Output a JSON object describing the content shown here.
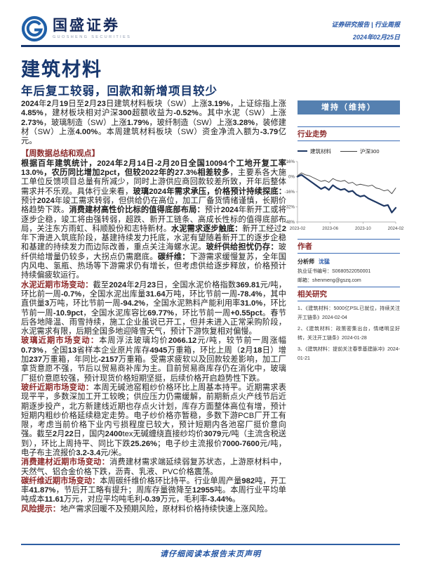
{
  "header": {
    "brand": "国盛证券",
    "brand_sub": "GUOSHENG SECURITIES",
    "report_type": "证券研究报告 | 行业周报",
    "date": "2024年02月25日"
  },
  "title": "建筑材料",
  "subtitle": "年后复工较弱，回款和新增项目较少",
  "paragraphs": [
    {
      "type": "text",
      "runs": [
        {
          "s": "n",
          "t": "2024年2月19日至2月23日建筑材料板块（SW）上涨3.19%，上证综指上涨4.85%，建材板块相对沪深300超额收益为-0.52%。其中水泥（SW）上涨2.73%，玻璃制造（SW）上涨1.79%，玻纤制造（SW）上涨3.28%，装修建材（SW）上涨4.00%。本周建筑材料板块（SW）资金净流入额为-3.79亿元。"
        }
      ]
    },
    {
      "type": "heading",
      "runs": [
        {
          "s": "r",
          "t": "【周数据总结和观点】"
        }
      ]
    },
    {
      "type": "text",
      "runs": [
        {
          "s": "b",
          "t": "根据百年建筑统计，2024年2月14日-2月20日全国10094个工地开复工率13.0%，农历同比增加2pct，但较2022年的27.3%相差较多"
        },
        {
          "s": "n",
          "t": "，主要系各大施工单位反馈项目总量有所减少，同时上游供应商回款较差所致，开年后整体需求并不乐观。具体行业来看，"
        },
        {
          "s": "b",
          "t": "玻璃2024年需求承压，价格预计持续探底："
        },
        {
          "s": "n",
          "t": "预计2024年竣工需求转弱，但供给仍在高位，加工厂备货情绪谨慎，长期价格趋势下跌。"
        },
        {
          "s": "b",
          "t": "消费建材高性价比标的值得底部布局："
        },
        {
          "s": "n",
          "t": "预计2024年新开工或将逐步企稳，竣工将由强转弱，超跌、新开工链条、高成长性标的值得底部布局，关注东方雨虹、科顺股份和志特新材。"
        },
        {
          "s": "b",
          "t": "水泥需求逐步触底："
        },
        {
          "s": "n",
          "t": "新开工经过2年下滑进入筑底阶段，基建持续发力托底，水泥有望随着新开工的逐步企稳和基建的持续发力而边际改善，重点关注海螺水泥。"
        },
        {
          "s": "b",
          "t": "玻纤供给担忧仍存："
        },
        {
          "s": "n",
          "t": "玻纤供给增量仍较多，大拐点仍需磨底。"
        },
        {
          "s": "b",
          "t": "碳纤维："
        },
        {
          "s": "n",
          "t": "下游需求缓慢复苏，全年国内风电、氢瓶、热场等下游需求仍有增长，但考虑供给逐步释放，价格预计持续偏疲软运行。"
        }
      ]
    },
    {
      "type": "text",
      "runs": [
        {
          "s": "r",
          "t": "水泥近期市场变动："
        },
        {
          "s": "n",
          "t": "截至2024年2月23日，全国水泥价格指数369.81元/吨，环比前一周-0.7%，全国水泥出库量31.64万吨，环比节前一周-78.4%，其中直供量3万吨，环比节前一周-94.2%，全国水泥熟料产能利用率31.0%，环比节前一周-10.9pct，全国水泥库容比69.77%，环比节前一周+0.55pct。春节后各地降温、雨雪持续，施工企业虽说已开工，但并未进入正常采购阶段，水泥需求有限，后期全国多地迎降雪天气，预计下游恢复相对偏慢。"
        }
      ]
    },
    {
      "type": "text",
      "runs": [
        {
          "s": "r",
          "t": "玻璃近期市场变动："
        },
        {
          "s": "n",
          "t": "本周浮法玻璃均价2066.12元/吨，较节前一周涨幅0.73%，全国13省样本企业原片库存4945万重箱，环比上周（2月18日）增加237万重箱，年同比-2157万重箱。受需求疲软以及回款较差影响，加工厂拿货意愿不强，节后以贸易商补库为主。目前贸易商库存仍在消化中，玻璃厂挺价意愿较强，预计现货价格短期坚挺，后续价格开启趋势性下跌。"
        }
      ]
    },
    {
      "type": "text",
      "runs": [
        {
          "s": "r",
          "t": "玻纤近期市场变动："
        },
        {
          "s": "n",
          "t": "本周无碱池窑粗纱价格环比上周基本持平。近期需求表现平平，多数深加工开工较晚；供应压力仍需缓解，前期新点火产线节后近期逐步投产，北方新建线近期也存点火计划，库存方面整体高位有增，预计短期内粗纱价格延续稳定走势。电子纱价格亦暂稳，多数下游PCB厂开工有限，考虑当前价格下业内亏损程度已较大，预计短期内各池窑厂挺价意向强。截至2月22日，国内2400tex无碱缠绕直接纱均价3079元/吨（主流含税送到），环比上周持平、同比下跌25.26%；电子纱主流报价7000-7600元/吨，电子布主流报价3.2-3.4元/米。"
        }
      ]
    },
    {
      "type": "text",
      "runs": [
        {
          "s": "r",
          "t": "消费建材近期市场变动："
        },
        {
          "s": "n",
          "t": "消费建材需求端延续弱复苏状态，上游原材料中，天然气、铝合金价格下跌，沥青、乳液、PVC价格震荡。"
        }
      ]
    },
    {
      "type": "text",
      "runs": [
        {
          "s": "r",
          "t": "碳纤维近期市场变动："
        },
        {
          "s": "n",
          "t": "本周碳纤维价格环比持平。行业单周产量982吨，开工率41.87%，节后开工略有提升；周库存量微降至12955吨。本周行业平均单吨成本11.61万元，对应平均吨毛利-0.39万元，毛利率-3.44%。"
        }
      ]
    },
    {
      "type": "text",
      "runs": [
        {
          "s": "r",
          "t": "风险提示："
        },
        {
          "s": "n",
          "t": "地产需求回暖不及预期风险，原材料价格持续快速上涨风险。"
        }
      ]
    }
  ],
  "sidebar": {
    "rating_badge": "增持（维持）",
    "sections": {
      "trend": "行业走势",
      "author": "作者",
      "research": "相关研究"
    },
    "author": {
      "role": "分析师",
      "name": "沈猛",
      "cert_label": "执业证书编号：",
      "cert_no": "S0680522050001",
      "email_label": "邮箱：",
      "email": "shenmeng@gszq.com"
    },
    "research": [
      {
        "label": "1、《建筑材料：5000亿PSL已就位，持续关注开工链条》",
        "date": "2024-02-04"
      },
      {
        "label": "2、《建筑材料：政策密集出台，情绪明显好转，关注开工链条》",
        "date": "2024-01-28"
      },
      {
        "label": "3、《建筑材料：提前关注春季基建脉冲》",
        "date": "2024-01-21"
      }
    ]
  },
  "chart_data": {
    "type": "line",
    "title": "行业走势",
    "x_tick_labels": [
      "2023-02",
      "2023-06",
      "2023-10",
      "2024-02"
    ],
    "y_ticks": [
      16,
      0,
      -16,
      -32,
      -48
    ],
    "ylim": [
      -48,
      16
    ],
    "y_unit": "%",
    "legend_position": "top",
    "grid": false,
    "series": [
      {
        "name": "建筑材料",
        "color": "#1F3864",
        "width": 2.2,
        "values": [
          0,
          2,
          -1,
          -4,
          -7,
          -10,
          -13,
          -11,
          -14,
          -9,
          -12,
          -14,
          -13,
          -16,
          -15,
          -19,
          -21,
          -20,
          -23,
          -25,
          -27,
          -29,
          -31,
          -30,
          -38,
          -33
        ]
      },
      {
        "name": "沪深300",
        "color": "#404040",
        "width": 0.9,
        "values": [
          1,
          4,
          2,
          1,
          -1,
          -3,
          -5,
          -4,
          -6,
          -2,
          -4,
          -5,
          -4,
          -7,
          -6,
          -9,
          -8,
          -9,
          -10,
          -9,
          -12,
          -13,
          -15,
          -14,
          -18,
          -12
        ]
      }
    ]
  },
  "footer": {
    "disclaimer": "请仔细阅读本报告末页声明"
  },
  "colors": {
    "navy": "#17376E",
    "maroon": "#8C2B2B",
    "badge_bg": "#5580B0",
    "hairline_blue": "#3A6BB5",
    "link_blue": "#2858A8",
    "series_primary": "#1F3864",
    "series_secondary": "#404040"
  }
}
